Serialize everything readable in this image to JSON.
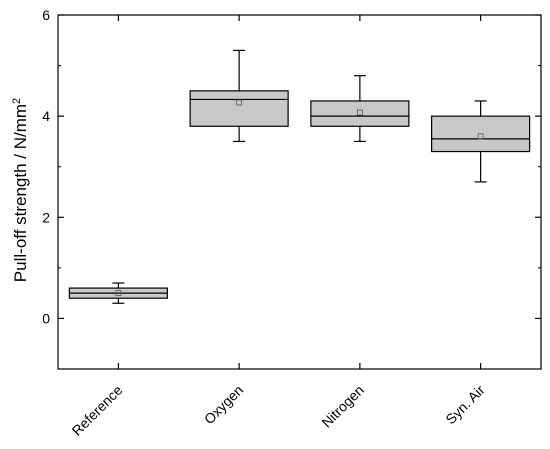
{
  "chart_data": {
    "type": "box",
    "ylabel": "Pull-off strength  / N/mm",
    "ylabel_superscript": "2",
    "ylim": [
      -1,
      6
    ],
    "yticks": [
      0,
      2,
      4,
      6
    ],
    "yminor_ticks": [
      -1,
      1,
      3,
      5
    ],
    "categories": [
      "Reference",
      "Oxygen",
      "Nitrogen",
      "Syn. Air"
    ],
    "boxes": [
      {
        "category": "Reference",
        "min": 0.3,
        "q1": 0.4,
        "median": 0.5,
        "q3": 0.6,
        "max": 0.7,
        "mean": 0.5
      },
      {
        "category": "Oxygen",
        "min": 3.5,
        "q1": 3.8,
        "median": 4.33,
        "q3": 4.5,
        "max": 5.3,
        "mean": 4.27
      },
      {
        "category": "Nitrogen",
        "min": 3.5,
        "q1": 3.8,
        "median": 4.0,
        "q3": 4.3,
        "max": 4.8,
        "mean": 4.07
      },
      {
        "category": "Syn. Air",
        "min": 2.7,
        "q1": 3.3,
        "median": 3.55,
        "q3": 4.0,
        "max": 4.3,
        "mean": 3.6
      }
    ],
    "box_color": "#c8c8c8",
    "grid": false
  }
}
